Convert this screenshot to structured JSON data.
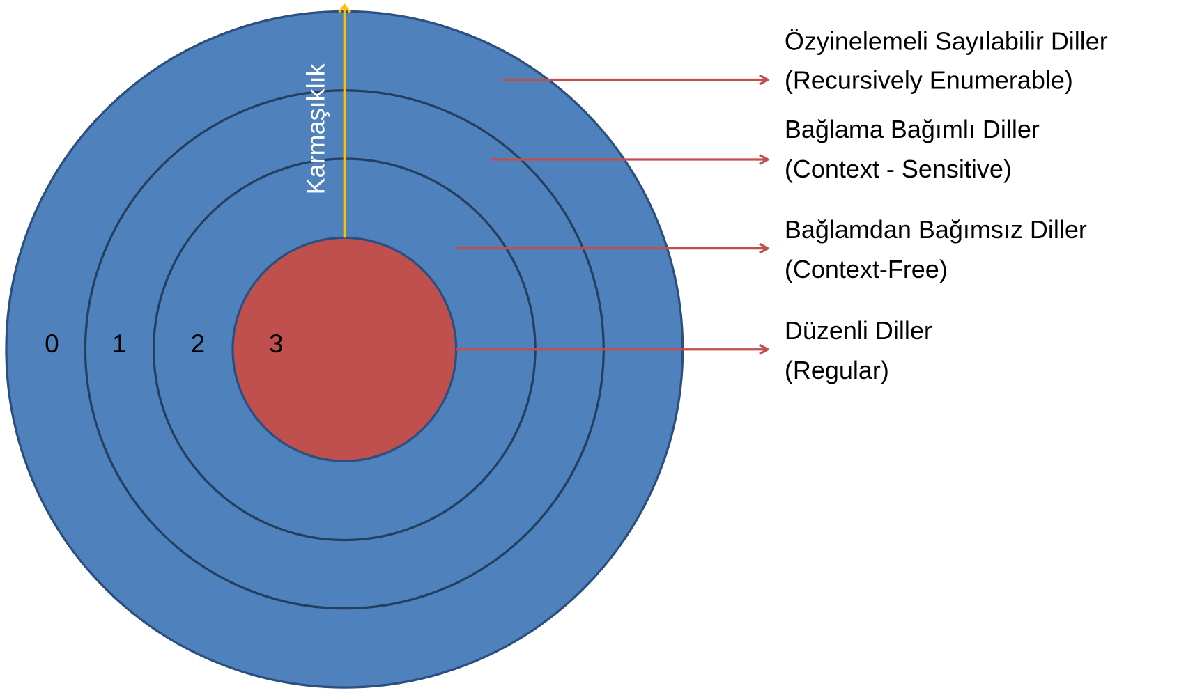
{
  "axis_label": "Karmaşıklık",
  "levels": [
    {
      "number": "0",
      "name": "Özyinelemeli Sayılabilir Diller",
      "english": "(Recursively Enumerable)"
    },
    {
      "number": "1",
      "name": "Bağlama Bağımlı Diller",
      "english": "(Context - Sensitive)"
    },
    {
      "number": "2",
      "name": "Bağlamdan Bağımsız Diller",
      "english": "(Context-Free)"
    },
    {
      "number": "3",
      "name": "Düzenli Diller",
      "english": "(Regular)"
    }
  ]
}
